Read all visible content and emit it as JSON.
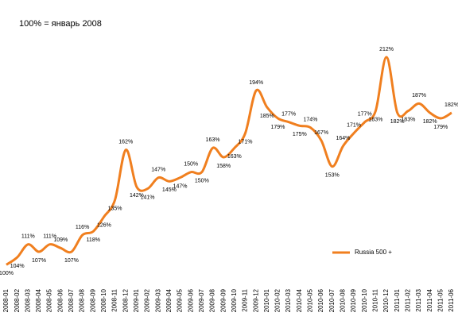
{
  "chart_data": {
    "type": "line",
    "title": "100% = январь 2008",
    "categories": [
      "2008-01",
      "2008-02",
      "2008-03",
      "2008-04",
      "2008-05",
      "2008-06",
      "2008-07",
      "2008-08",
      "2008-09",
      "2008-10",
      "2008-11",
      "2008-12",
      "2009-01",
      "2009-02",
      "2009-03",
      "2009-04",
      "2009-05",
      "2009-06",
      "2009-07",
      "2009-08",
      "2009-09",
      "2009-10",
      "2009-11",
      "2009-12",
      "2010-01",
      "2010-02",
      "2010-03",
      "2010-04",
      "2010-05",
      "2010-06",
      "2010-07",
      "2010-08",
      "2010-09",
      "2010-10",
      "2010-11",
      "2010-12",
      "2011-01",
      "2011-02",
      "2011-03",
      "2011-04",
      "2011-05",
      "2011-06"
    ],
    "series": [
      {
        "name": "Russia 500 +",
        "color": "#f07f1f",
        "values": [
          100,
          104,
          111,
          107,
          111,
          109,
          107,
          116,
          118,
          126,
          135,
          162,
          142,
          141,
          147,
          145,
          147,
          150,
          150,
          163,
          158,
          163,
          171,
          194,
          185,
          179,
          177,
          175,
          174,
          167,
          153,
          164,
          171,
          177,
          183,
          212,
          182,
          183,
          187,
          182,
          179,
          182
        ],
        "value_labels": [
          "100%",
          "104%",
          "111%",
          "107%",
          "111%",
          "109%",
          "107%",
          "116%",
          "118%",
          "126%",
          "135%",
          "162%",
          "142%",
          "141%",
          "147%",
          "145%",
          "147%",
          "150%",
          "150%",
          "163%",
          "158%",
          "163%",
          "171%",
          "194%",
          "185%",
          "179%",
          "177%",
          "175%",
          "174%",
          "167%",
          "153%",
          "164%",
          "171%",
          "177%",
          "183%",
          "212%",
          "182%",
          "183%",
          "187%",
          "182%",
          "179%",
          "182%"
        ]
      }
    ],
    "ylim": [
      95,
      215
    ],
    "legend": "right"
  }
}
